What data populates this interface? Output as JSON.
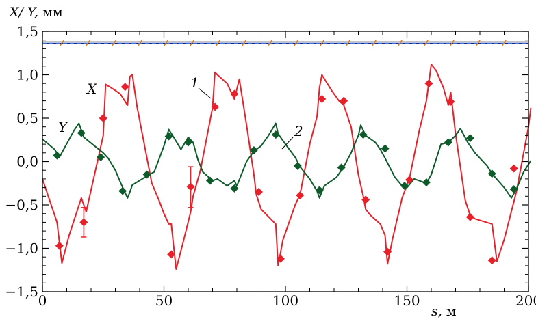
{
  "chart_data": {
    "type": "line",
    "title": "",
    "ylabel_var": "X/ Y,",
    "ylabel_unit": "мм",
    "xlabel_var": "s,",
    "xlabel_unit": "м",
    "xlim": [
      0,
      200
    ],
    "ylim": [
      -1.5,
      1.5
    ],
    "x_ticks": [
      0,
      50,
      100,
      150,
      200
    ],
    "x_tick_labels": [
      "0",
      "50",
      "100",
      "150",
      "200"
    ],
    "y_ticks": [
      -1.5,
      -1.0,
      -0.5,
      0.0,
      0.5,
      1.0,
      1.5
    ],
    "y_tick_labels": [
      "−1,5",
      "−1,0",
      "−0,5",
      "0,0",
      "0,5",
      "1,0",
      "1,5"
    ],
    "grid": false,
    "colors": {
      "x_series": "#e8202a",
      "y_series": "#0d5a2a",
      "lattice_line": "#1a237e",
      "lattice_dash": "#3b6fd8",
      "lattice_marker": "#d9812a"
    },
    "annotations": {
      "x_label": "X",
      "y_label": "Y",
      "curve1": "1",
      "curve2": "2"
    },
    "series": [
      {
        "name": "X",
        "role": "model",
        "color": "#e8202a",
        "x": [
          0,
          6,
          8,
          11,
          16,
          18,
          25,
          26,
          30,
          32,
          35,
          36,
          37,
          39,
          45,
          48,
          50,
          52,
          53,
          55,
          58,
          61,
          62,
          65,
          70,
          71,
          72,
          76,
          79,
          81,
          84,
          87,
          88,
          90,
          96,
          97,
          99,
          104,
          106,
          110,
          113,
          114,
          115,
          119,
          122,
          124,
          127,
          130,
          132,
          133,
          135,
          139,
          141,
          142,
          144,
          148,
          151,
          155,
          158,
          160,
          162,
          165,
          167,
          168,
          170,
          174,
          176,
          178,
          185,
          187,
          190,
          195,
          200,
          201
        ],
        "y": [
          -0.2,
          -0.7,
          -1.17,
          -0.85,
          -0.42,
          -0.58,
          0.3,
          0.89,
          0.82,
          0.78,
          0.65,
          0.98,
          1.0,
          0.62,
          -0.25,
          -0.45,
          -0.6,
          -0.72,
          -0.72,
          -1.24,
          -0.92,
          -0.58,
          -0.4,
          -0.1,
          0.62,
          1.03,
          1.0,
          0.9,
          0.72,
          0.95,
          0.42,
          -0.15,
          -0.38,
          -0.55,
          -0.72,
          -1.2,
          -0.9,
          -0.5,
          -0.38,
          0.2,
          0.52,
          0.85,
          1.0,
          0.82,
          0.7,
          0.65,
          0.4,
          -0.15,
          -0.4,
          -0.55,
          -0.62,
          -0.72,
          -0.85,
          -1.18,
          -0.9,
          -0.42,
          -0.2,
          0.35,
          0.7,
          1.12,
          1.05,
          0.85,
          0.65,
          0.8,
          0.32,
          -0.45,
          -0.62,
          -0.66,
          -0.72,
          -1.15,
          -0.9,
          -0.35,
          0.4,
          0.62
        ]
      },
      {
        "name": "Y",
        "role": "model",
        "color": "#0d5a2a",
        "x": [
          0,
          5,
          7,
          13,
          15,
          17,
          25,
          27,
          30,
          33,
          35,
          36,
          37,
          44,
          46,
          50,
          52,
          54,
          57,
          60,
          62,
          64,
          66,
          70,
          72,
          76,
          79,
          80,
          84,
          87,
          90,
          93,
          96,
          97,
          100,
          104,
          106,
          110,
          113,
          114,
          116,
          121,
          124,
          127,
          130,
          131,
          133,
          137,
          139,
          141,
          145,
          148,
          150,
          153,
          155,
          158,
          160,
          164,
          167,
          170,
          172,
          175,
          178,
          183,
          185,
          190,
          193,
          195,
          198,
          201
        ],
        "y": [
          0.26,
          0.14,
          0.05,
          0.36,
          0.44,
          0.28,
          0.1,
          0.04,
          -0.1,
          -0.3,
          -0.42,
          -0.35,
          -0.27,
          -0.15,
          -0.12,
          0.18,
          0.37,
          0.28,
          0.14,
          0.28,
          0.22,
          0.02,
          -0.12,
          -0.22,
          -0.2,
          -0.28,
          -0.22,
          -0.28,
          0.0,
          0.12,
          0.18,
          0.3,
          0.44,
          0.32,
          0.2,
          0.05,
          -0.06,
          -0.2,
          -0.34,
          -0.42,
          -0.28,
          -0.18,
          -0.06,
          0.1,
          0.3,
          0.42,
          0.3,
          0.22,
          0.14,
          0.04,
          -0.18,
          -0.28,
          -0.3,
          -0.2,
          -0.22,
          -0.25,
          -0.15,
          0.2,
          0.22,
          0.3,
          0.38,
          0.22,
          0.1,
          -0.05,
          -0.14,
          -0.3,
          -0.42,
          -0.32,
          -0.12,
          0.01
        ]
      },
      {
        "name": "X",
        "role": "measured",
        "color": "#e8202a",
        "x": [
          7,
          17,
          25,
          34,
          53,
          61,
          71,
          79,
          89,
          98,
          106,
          115,
          124,
          133,
          142,
          151,
          159,
          168,
          176,
          185,
          194
        ],
        "y": [
          -0.97,
          -0.7,
          0.5,
          0.86,
          -1.07,
          -0.29,
          0.63,
          0.78,
          -0.35,
          -1.12,
          -0.39,
          0.72,
          0.7,
          -0.44,
          -1.04,
          -0.21,
          0.9,
          0.69,
          -0.64,
          -1.14,
          -0.08
        ],
        "errors": [
          {
            "x": 17,
            "y": -0.7,
            "low": -0.87,
            "high": -0.53
          },
          {
            "x": 61,
            "y": -0.29,
            "low": -0.53,
            "high": -0.06
          }
        ]
      },
      {
        "name": "Y",
        "role": "measured",
        "color": "#0d5a2a",
        "x": [
          6,
          16,
          24,
          33,
          43,
          52,
          60,
          69,
          79,
          87,
          96,
          105,
          114,
          123,
          132,
          141,
          149,
          158,
          167,
          176,
          185,
          194
        ],
        "y": [
          0.07,
          0.33,
          0.05,
          -0.34,
          -0.15,
          0.29,
          0.22,
          -0.22,
          -0.31,
          0.13,
          0.31,
          -0.05,
          -0.33,
          -0.07,
          0.31,
          0.15,
          -0.28,
          -0.24,
          0.22,
          0.27,
          -0.14,
          -0.32
        ]
      }
    ]
  }
}
